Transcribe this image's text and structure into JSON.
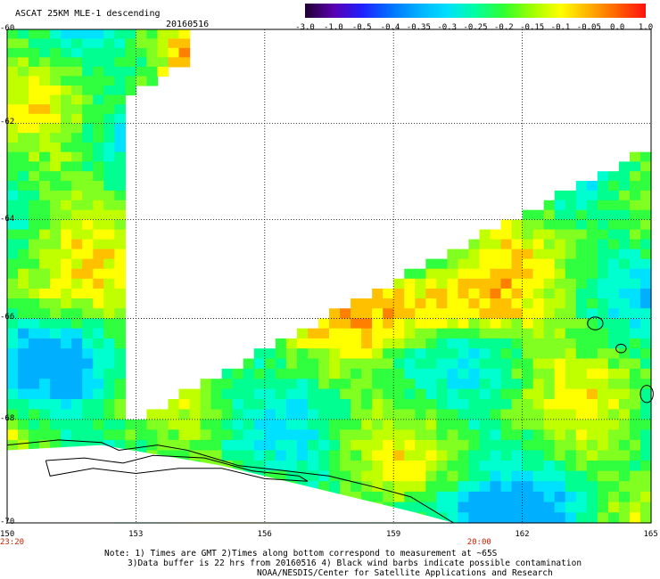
{
  "header": {
    "title": "ASCAT 25KM MLE-1 descending",
    "date": "20160516"
  },
  "colorbar": {
    "labels": [
      "-3.0",
      "-1.0",
      "-0.5",
      "-0.4",
      "-0.35",
      "-0.3",
      "-0.25",
      "-0.2",
      "-0.15",
      "-0.1",
      "-0.05",
      "0.0",
      "1.0"
    ],
    "colors": [
      "#200030",
      "#5a00b0",
      "#2020ff",
      "#0070ff",
      "#00b0ff",
      "#00e0ff",
      "#00ffa0",
      "#30ff30",
      "#a0ff00",
      "#ffff00",
      "#ffb000",
      "#ff6000",
      "#ff1010"
    ]
  },
  "map": {
    "x_axis": {
      "labels": [
        "150",
        "153",
        "156",
        "159",
        "162",
        "165"
      ],
      "values": [
        150,
        153,
        156,
        159,
        162,
        165
      ]
    },
    "y_axis": {
      "labels": [
        "-60",
        "-62",
        "-64",
        "-66",
        "-68",
        "-70"
      ],
      "values": [
        -60,
        -62,
        -64,
        -66,
        -68,
        -70
      ]
    },
    "time_labels": [
      {
        "text": "23:20",
        "lon": 150
      },
      {
        "text": "20:00",
        "lon": 161
      }
    ]
  },
  "notes": {
    "line1": "Note: 1) Times are GMT 2)Times along bottom correspond to measurement at ~65S",
    "line2": "3)Data buffer is 22 hrs from 20160516 4) Black wind barbs indicate possible contamination",
    "line3": "NOAA/NESDIS/Center for Satellite Applications and Research"
  }
}
